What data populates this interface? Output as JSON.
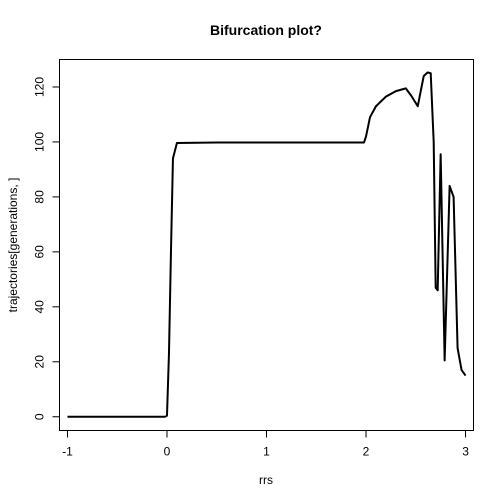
{
  "chart_data": {
    "type": "line",
    "title": "Bifurcation plot?",
    "xlabel": "rrs",
    "ylabel": "trajectories[generations, ]",
    "xlim": [
      -1.08,
      3.08
    ],
    "ylim": [
      -5,
      130
    ],
    "xticks": [
      -1,
      0,
      1,
      2,
      3
    ],
    "yticks": [
      0,
      20,
      40,
      60,
      80,
      100,
      120
    ],
    "grid": false,
    "legend": "none",
    "line_color": "#000000",
    "x": [
      -1.0,
      -0.04,
      -0.02,
      0.0,
      0.02,
      0.04,
      0.06,
      0.1,
      0.5,
      1.0,
      1.5,
      1.94,
      1.98,
      2.0,
      2.04,
      2.1,
      2.2,
      2.3,
      2.4,
      2.46,
      2.52,
      2.58,
      2.62,
      2.65,
      2.68,
      2.7,
      2.72,
      2.75,
      2.79,
      2.84,
      2.88,
      2.92,
      2.96,
      3.0
    ],
    "y": [
      0,
      0,
      0,
      0.4,
      23,
      60,
      94,
      99.6,
      99.8,
      99.8,
      99.8,
      99.8,
      99.8,
      102,
      109,
      113,
      116.5,
      118.5,
      119.5,
      116.5,
      113,
      124,
      125.3,
      125,
      100,
      47,
      46,
      95.5,
      20.5,
      84,
      80,
      25,
      17,
      15
    ]
  }
}
